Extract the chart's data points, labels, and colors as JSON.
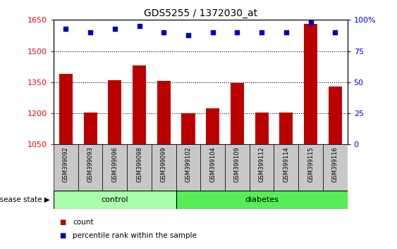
{
  "title": "GDS5255 / 1372030_at",
  "samples": [
    "GSM399092",
    "GSM399093",
    "GSM399096",
    "GSM399098",
    "GSM399099",
    "GSM399102",
    "GSM399104",
    "GSM399109",
    "GSM399112",
    "GSM399114",
    "GSM399115",
    "GSM399116"
  ],
  "counts": [
    1390,
    1205,
    1360,
    1430,
    1355,
    1200,
    1225,
    1345,
    1205,
    1205,
    1630,
    1330
  ],
  "percentiles": [
    93,
    90,
    93,
    95,
    90,
    88,
    90,
    90,
    90,
    90,
    98,
    90
  ],
  "ylim_left": [
    1050,
    1650
  ],
  "ylim_right": [
    0,
    100
  ],
  "yticks_left": [
    1050,
    1200,
    1350,
    1500,
    1650
  ],
  "yticks_right": [
    0,
    25,
    50,
    75,
    100
  ],
  "n_control": 5,
  "n_diabetes": 7,
  "bar_color": "#BB0000",
  "dot_color": "#0000BB",
  "control_bg": "#AAFFAA",
  "diabetes_bg": "#55EE55",
  "label_bg": "#C8C8C8",
  "legend_count_color": "#BB0000",
  "legend_percentile_color": "#0000BB",
  "legend_count_label": "count",
  "legend_percentile_label": "percentile rank within the sample",
  "disease_state_label": "disease state",
  "control_label": "control",
  "diabetes_label": "diabetes"
}
